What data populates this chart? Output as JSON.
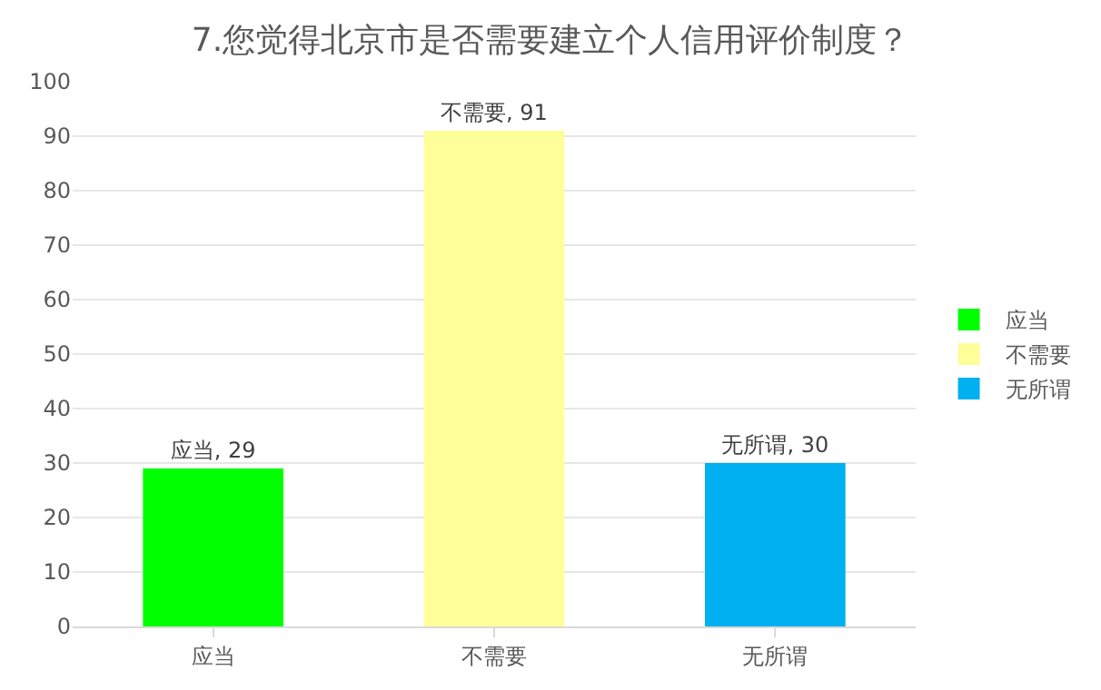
{
  "chart_data": {
    "type": "bar",
    "title": "7.您觉得北京市是否需要建立个人信用评价制度？",
    "categories": [
      "应当",
      "不需要",
      "无所谓"
    ],
    "series": [
      {
        "name": "应当",
        "color": "#00ff00",
        "values": [
          29,
          null,
          null
        ],
        "value_labels": [
          "应当, 29",
          null,
          null
        ]
      },
      {
        "name": "不需要",
        "color": "#ffff99",
        "values": [
          null,
          91,
          null
        ],
        "value_labels": [
          null,
          "不需要, 91",
          null
        ]
      },
      {
        "name": "无所谓",
        "color": "#00b0f0",
        "values": [
          null,
          null,
          30
        ],
        "value_labels": [
          null,
          null,
          "无所谓, 30"
        ]
      }
    ],
    "ylim": [
      0,
      100
    ],
    "yticks": [
      0,
      10,
      20,
      30,
      40,
      50,
      60,
      70,
      80,
      90,
      100
    ],
    "grid": "y",
    "legend": "right"
  }
}
